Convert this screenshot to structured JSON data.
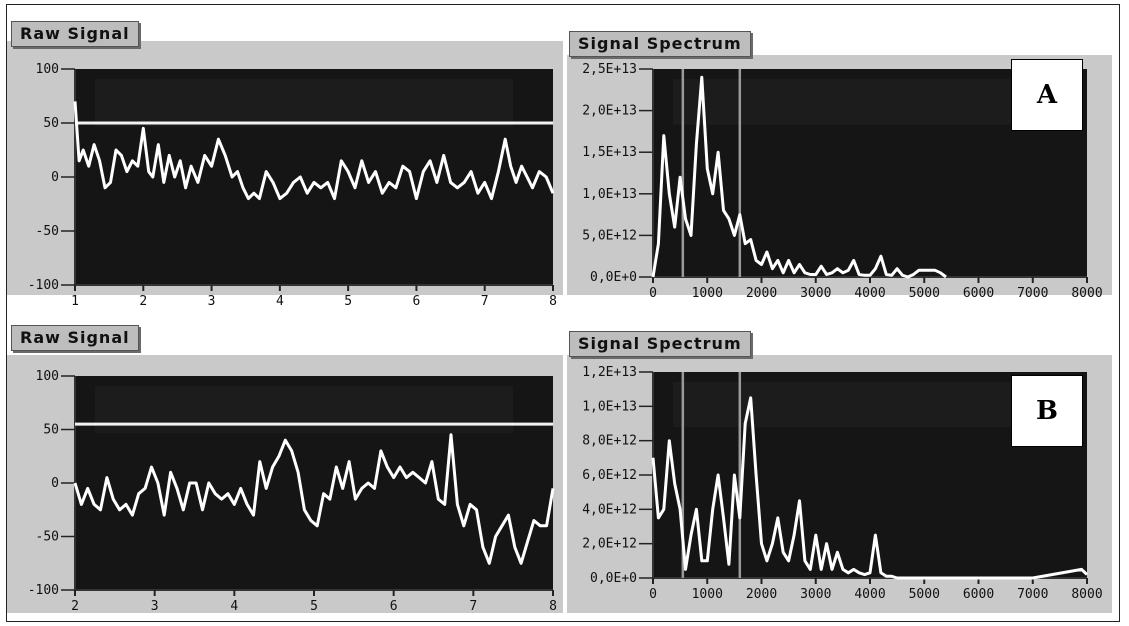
{
  "chart_data": [
    {
      "id": "rawA",
      "type": "line",
      "title": "Raw Signal",
      "xlabel": "",
      "ylabel": "",
      "xlim": [
        1,
        8
      ],
      "ylim": [
        -100,
        100
      ],
      "xticks": [
        "1",
        "2",
        "3",
        "4",
        "5",
        "6",
        "7",
        "8"
      ],
      "yticks": [
        "100",
        "50",
        "0",
        "-50",
        "-100"
      ],
      "threshold": 50,
      "series": [
        {
          "x": [
            1.0,
            1.06,
            1.12,
            1.2,
            1.28,
            1.36,
            1.44,
            1.52,
            1.6,
            1.68,
            1.76,
            1.84,
            1.92,
            2.0,
            2.08,
            2.14,
            2.22,
            2.3,
            2.38,
            2.46,
            2.54,
            2.62,
            2.7,
            2.8,
            2.9,
            3.0,
            3.1,
            3.2,
            3.3,
            3.38,
            3.46,
            3.54,
            3.62,
            3.7,
            3.8,
            3.9,
            4.0,
            4.1,
            4.2,
            4.3,
            4.4,
            4.5,
            4.6,
            4.7,
            4.8,
            4.9,
            5.0,
            5.1,
            5.2,
            5.3,
            5.4,
            5.5,
            5.6,
            5.7,
            5.8,
            5.9,
            6.0,
            6.1,
            6.2,
            6.3,
            6.4,
            6.5,
            6.6,
            6.7,
            6.8,
            6.9,
            7.0,
            7.1,
            7.2,
            7.3,
            7.38,
            7.46,
            7.54,
            7.62,
            7.7,
            7.8,
            7.9,
            8.0
          ],
          "y": [
            70,
            15,
            25,
            10,
            30,
            15,
            -10,
            -5,
            25,
            20,
            5,
            15,
            10,
            45,
            5,
            0,
            30,
            -5,
            20,
            0,
            15,
            -10,
            10,
            -5,
            20,
            10,
            35,
            20,
            0,
            5,
            -10,
            -20,
            -15,
            -20,
            5,
            -5,
            -20,
            -15,
            -5,
            0,
            -15,
            -5,
            -10,
            -5,
            -20,
            15,
            5,
            -10,
            15,
            -5,
            5,
            -15,
            -5,
            -10,
            10,
            5,
            -20,
            5,
            15,
            -5,
            20,
            -5,
            -10,
            -5,
            5,
            -15,
            -5,
            -20,
            5,
            35,
            10,
            -5,
            10,
            0,
            -10,
            5,
            0,
            -15
          ]
        }
      ]
    },
    {
      "id": "specA",
      "type": "line",
      "title": "Signal Spectrum",
      "xlabel": "",
      "ylabel": "",
      "xlim": [
        0,
        8000
      ],
      "ylim": [
        0,
        25000000000000
      ],
      "xticks": [
        "0",
        "1000",
        "2000",
        "3000",
        "4000",
        "5000",
        "6000",
        "7000",
        "8000"
      ],
      "yticks": [
        "2,5E+13",
        "2,0E+13",
        "1,5E+13",
        "1,0E+13",
        "5,0E+12",
        "0,0E+0"
      ],
      "markers": [
        550,
        1600
      ],
      "series": [
        {
          "x": [
            0,
            100,
            200,
            300,
            400,
            500,
            600,
            700,
            800,
            900,
            1000,
            1100,
            1200,
            1300,
            1400,
            1500,
            1600,
            1700,
            1800,
            1900,
            2000,
            2100,
            2200,
            2300,
            2400,
            2500,
            2600,
            2700,
            2800,
            2900,
            3000,
            3100,
            3200,
            3300,
            3400,
            3500,
            3600,
            3700,
            3800,
            3900,
            4000,
            4100,
            4200,
            4300,
            4400,
            4500,
            4600,
            4700,
            4800,
            4900,
            5000,
            5100,
            5200,
            5300,
            5400
          ],
          "y": [
            0,
            4000000000000.0,
            17000000000000.0,
            10000000000000.0,
            6000000000000.0,
            12000000000000.0,
            7000000000000.0,
            5000000000000.0,
            16000000000000.0,
            24000000000000.0,
            13000000000000.0,
            10000000000000.0,
            15000000000000.0,
            8000000000000.0,
            7000000000000.0,
            5000000000000.0,
            7500000000000.0,
            4000000000000.0,
            4500000000000.0,
            2000000000000.0,
            1500000000000.0,
            3000000000000.0,
            1000000000000.0,
            2000000000000.0,
            500000000000.0,
            2000000000000.0,
            500000000000.0,
            1500000000000.0,
            500000000000.0,
            300000000000.0,
            300000000000.0,
            1300000000000.0,
            300000000000.0,
            500000000000.0,
            1000000000000.0,
            500000000000.0,
            800000000000.0,
            2000000000000.0,
            300000000000.0,
            200000000000.0,
            200000000000.0,
            1000000000000.0,
            2500000000000.0,
            300000000000.0,
            200000000000.0,
            1000000000000.0,
            200000000000.0,
            0,
            300000000000.0,
            800000000000.0,
            800000000000.0,
            800000000000.0,
            800000000000.0,
            500000000000.0,
            0
          ]
        }
      ]
    },
    {
      "id": "rawB",
      "type": "line",
      "title": "Raw Signal",
      "xlabel": "",
      "ylabel": "",
      "xlim": [
        2,
        8
      ],
      "ylim": [
        -100,
        100
      ],
      "xticks": [
        "2",
        "3",
        "4",
        "5",
        "6",
        "7",
        "8"
      ],
      "yticks": [
        "100",
        "50",
        "0",
        "-50",
        "-100"
      ],
      "threshold": 55,
      "series": [
        {
          "x": [
            2.0,
            2.08,
            2.16,
            2.24,
            2.32,
            2.4,
            2.48,
            2.56,
            2.64,
            2.72,
            2.8,
            2.88,
            2.96,
            3.04,
            3.12,
            3.2,
            3.28,
            3.36,
            3.44,
            3.52,
            3.6,
            3.68,
            3.76,
            3.84,
            3.92,
            4.0,
            4.08,
            4.16,
            4.24,
            4.32,
            4.4,
            4.48,
            4.56,
            4.64,
            4.72,
            4.8,
            4.88,
            4.96,
            5.04,
            5.12,
            5.2,
            5.28,
            5.36,
            5.44,
            5.52,
            5.6,
            5.68,
            5.76,
            5.84,
            5.92,
            6.0,
            6.08,
            6.16,
            6.24,
            6.32,
            6.4,
            6.48,
            6.56,
            6.64,
            6.72,
            6.8,
            6.88,
            6.96,
            7.04,
            7.12,
            7.2,
            7.28,
            7.36,
            7.44,
            7.52,
            7.6,
            7.68,
            7.76,
            7.84,
            7.92,
            8.0
          ],
          "y": [
            0,
            -20,
            -5,
            -20,
            -25,
            5,
            -15,
            -25,
            -20,
            -30,
            -10,
            -5,
            15,
            0,
            -30,
            10,
            -5,
            -25,
            0,
            0,
            -25,
            0,
            -10,
            -15,
            -10,
            -20,
            -5,
            -20,
            -30,
            20,
            -5,
            15,
            25,
            40,
            30,
            10,
            -25,
            -35,
            -40,
            -10,
            -15,
            15,
            -5,
            20,
            -15,
            -5,
            0,
            -5,
            30,
            15,
            5,
            15,
            5,
            10,
            5,
            0,
            20,
            -15,
            -20,
            45,
            -20,
            -40,
            -20,
            -25,
            -60,
            -75,
            -50,
            -40,
            -30,
            -60,
            -75,
            -55,
            -35,
            -40,
            -40,
            -5
          ]
        }
      ]
    },
    {
      "id": "specB",
      "type": "line",
      "title": "Signal Spectrum",
      "xlabel": "",
      "ylabel": "",
      "xlim": [
        0,
        8000
      ],
      "ylim": [
        0,
        12000000000000
      ],
      "xticks": [
        "0",
        "1000",
        "2000",
        "3000",
        "4000",
        "5000",
        "6000",
        "7000",
        "8000"
      ],
      "yticks": [
        "1,2E+13",
        "1,0E+13",
        "8,0E+12",
        "6,0E+12",
        "4,0E+12",
        "2,0E+12",
        "0,0E+0"
      ],
      "markers": [
        550,
        1600
      ],
      "series": [
        {
          "x": [
            0,
            100,
            200,
            300,
            400,
            500,
            600,
            700,
            800,
            900,
            1000,
            1100,
            1200,
            1300,
            1400,
            1500,
            1600,
            1700,
            1800,
            1900,
            2000,
            2100,
            2200,
            2300,
            2400,
            2500,
            2600,
            2700,
            2800,
            2900,
            3000,
            3100,
            3200,
            3300,
            3400,
            3500,
            3600,
            3700,
            3800,
            3900,
            4000,
            4100,
            4200,
            4300,
            4400,
            4500,
            4600,
            5000,
            6000,
            7000,
            7900,
            8000
          ],
          "y": [
            7000000000000.0,
            3500000000000.0,
            4000000000000.0,
            8000000000000.0,
            5500000000000.0,
            4000000000000.0,
            500000000000.0,
            2500000000000.0,
            4000000000000.0,
            1000000000000.0,
            1000000000000.0,
            4000000000000.0,
            6000000000000.0,
            3500000000000.0,
            800000000000.0,
            6000000000000.0,
            3500000000000.0,
            9000000000000.0,
            10500000000000.0,
            6000000000000.0,
            2000000000000.0,
            1000000000000.0,
            2000000000000.0,
            3500000000000.0,
            1500000000000.0,
            1000000000000.0,
            2500000000000.0,
            4500000000000.0,
            1000000000000.0,
            500000000000.0,
            2500000000000.0,
            500000000000.0,
            2000000000000.0,
            500000000000.0,
            1500000000000.0,
            500000000000.0,
            300000000000.0,
            500000000000.0,
            300000000000.0,
            200000000000.0,
            300000000000.0,
            2500000000000.0,
            300000000000.0,
            100000000000.0,
            100000000000.0,
            0,
            0,
            0,
            0,
            0,
            500000000000.0,
            200000000000.0
          ]
        }
      ]
    }
  ],
  "labels": {
    "a": "A",
    "b": "B"
  }
}
